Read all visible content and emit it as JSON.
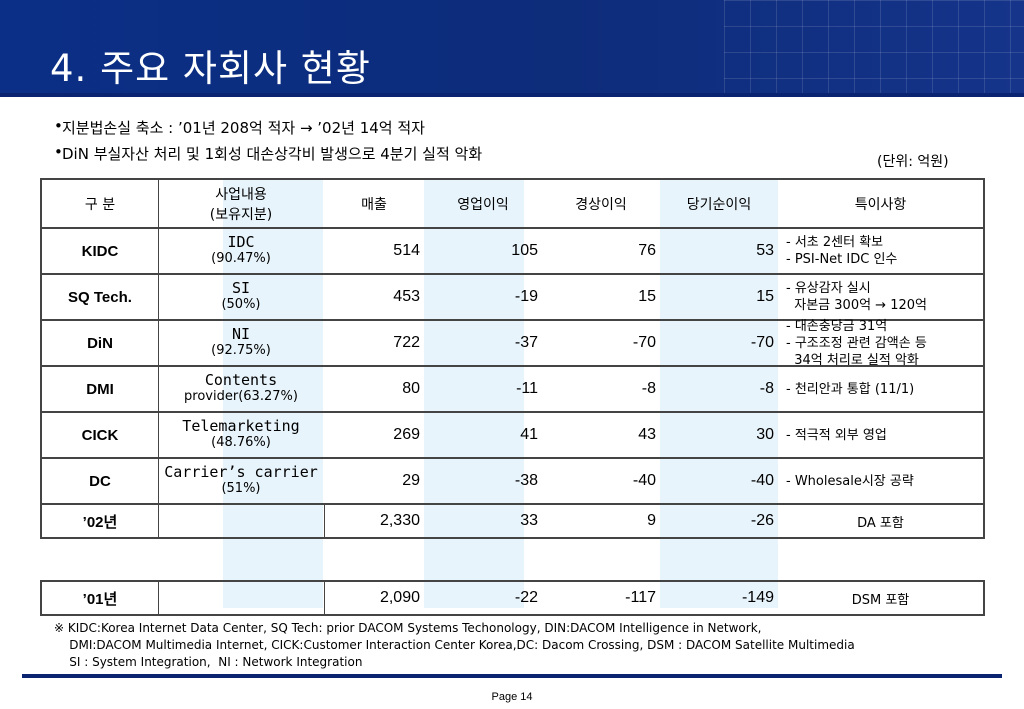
{
  "slide": {
    "title": "4. 주요 자회사 현황",
    "bullets": [
      "지분법손실 축소 :  ’01년 208억 적자  → ’02년 14억 적자",
      "DiN 부실자산 처리 및 1회성 대손상각비 발생으로 4분기 실적 악화"
    ],
    "unit": "(단위: 억원)",
    "bullet_symbol": "•"
  },
  "table": {
    "headers": {
      "name": "구  분",
      "biz_line1": "사업내용",
      "biz_line2": "(보유지분)",
      "sales": "매출",
      "op_profit": "영업이익",
      "ord_profit": "경상이익",
      "net_profit": "당기순이익",
      "notes": "특이사항"
    },
    "rows": [
      {
        "name": "KIDC",
        "biz": "IDC",
        "share": "(90.47%)",
        "sales": "514",
        "op": "105",
        "ord": "76",
        "net": "53",
        "notes": [
          "- 서초 2센터 확보",
          "- PSI-Net IDC 인수"
        ]
      },
      {
        "name": "SQ Tech.",
        "biz": "SI",
        "share": "(50%)",
        "sales": "453",
        "op": "-19",
        "ord": "15",
        "net": "15",
        "notes": [
          "- 유상감자 실시",
          "  자본금 300억 → 120억"
        ]
      },
      {
        "name": "DiN",
        "biz": "NI",
        "share": "(92.75%)",
        "sales": "722",
        "op": "-37",
        "ord": "-70",
        "net": "-70",
        "notes": [
          "- 대손충당금 31억",
          "- 구조조정 관련 감액손 등",
          "  34억 처리로 실적 악화"
        ]
      },
      {
        "name": "DMI",
        "biz": "Contents",
        "share": "provider(63.27%)",
        "sales": "80",
        "op": "-11",
        "ord": "-8",
        "net": "-8",
        "notes": [
          "- 천리안과 통합 (11/1)"
        ]
      },
      {
        "name": "CICK",
        "biz": "Telemarketing",
        "share": "(48.76%)",
        "sales": "269",
        "op": "41",
        "ord": "43",
        "net": "30",
        "notes": [
          "- 적극적 외부 영업"
        ]
      },
      {
        "name": "DC",
        "biz": "Carrier’s carrier",
        "share": "(51%)",
        "sales": "29",
        "op": "-38",
        "ord": "-40",
        "net": "-40",
        "notes": [
          "- Wholesale시장 공략"
        ]
      }
    ],
    "total_02": {
      "name": "’02년",
      "sales": "2,330",
      "op": "33",
      "ord": "9",
      "net": "-26",
      "notes": "DA 포함"
    },
    "total_01": {
      "name": "’01년",
      "sales": "2,090",
      "op": "-22",
      "ord": "-117",
      "net": "-149",
      "notes": "DSM 포함"
    }
  },
  "footnote": [
    "※ KIDC:Korea Internet Data Center, SQ Tech: prior DACOM Systems Techonology, DIN:DACOM Intelligence in Network,",
    "    DMI:DACOM Multimedia Internet, CICK:Customer Interaction Center Korea,DC: Dacom Crossing, DSM : DACOM Satellite Multimedia",
    "    SI : System Integration,  NI : Network Integration"
  ],
  "page_label": "Page 14",
  "colors": {
    "header_bg": "#0b2f86",
    "column_tint": "#e8f4fb",
    "rule": "#0a2472"
  }
}
